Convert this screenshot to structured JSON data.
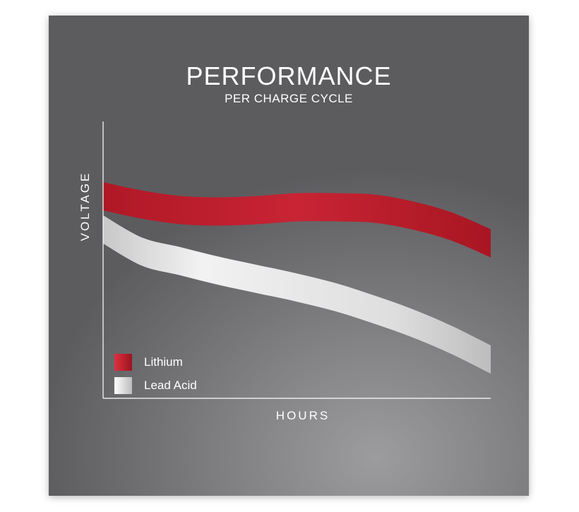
{
  "chart_data": {
    "type": "area",
    "title": "PERFORMANCE",
    "subtitle": "PER CHARGE CYCLE",
    "xlabel": "HOURS",
    "ylabel": "VOLTAGE",
    "xlim": [
      0,
      10
    ],
    "ylim": [
      0,
      10
    ],
    "grid": false,
    "legend_position": "bottom-left",
    "series": [
      {
        "name": "Lithium",
        "color": "#c0202e",
        "x": [
          0,
          1,
          2,
          3,
          4,
          5,
          6,
          7,
          8,
          9,
          10
        ],
        "values": [
          7.3,
          7.0,
          6.8,
          6.75,
          6.8,
          6.9,
          6.9,
          6.85,
          6.6,
          6.2,
          5.6
        ]
      },
      {
        "name": "Lead Acid",
        "color": "#e6e6e6",
        "x": [
          0,
          1,
          2,
          3,
          4,
          5,
          6,
          7,
          8,
          9,
          10
        ],
        "values": [
          6.1,
          5.3,
          4.95,
          4.6,
          4.3,
          4.0,
          3.65,
          3.2,
          2.7,
          2.1,
          1.4
        ]
      }
    ]
  }
}
